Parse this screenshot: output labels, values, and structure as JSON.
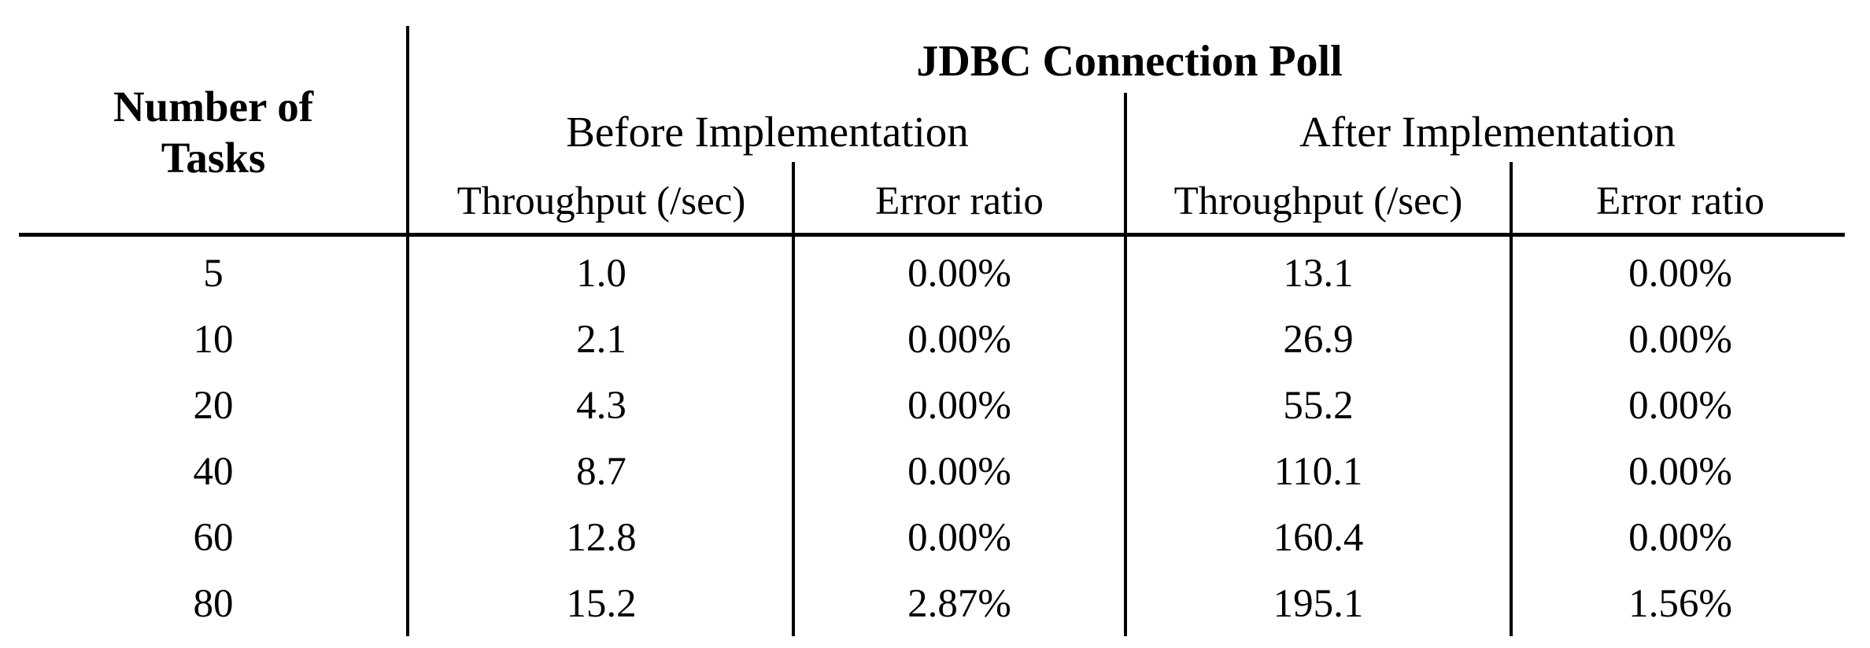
{
  "table": {
    "row_header_label": [
      "Number of",
      "Tasks"
    ],
    "group_title": "JDBC Connection Poll",
    "subgroups": [
      "Before Implementation",
      "After Implementation"
    ],
    "columns": [
      "Throughput (/sec)",
      "Error ratio",
      "Throughput (/sec)",
      "Error ratio"
    ],
    "rows": [
      {
        "tasks": "5",
        "before_throughput": "1.0",
        "before_error": "0.00%",
        "after_throughput": "13.1",
        "after_error": "0.00%"
      },
      {
        "tasks": "10",
        "before_throughput": "2.1",
        "before_error": "0.00%",
        "after_throughput": "26.9",
        "after_error": "0.00%"
      },
      {
        "tasks": "20",
        "before_throughput": "4.3",
        "before_error": "0.00%",
        "after_throughput": "55.2",
        "after_error": "0.00%"
      },
      {
        "tasks": "40",
        "before_throughput": "8.7",
        "before_error": "0.00%",
        "after_throughput": "110.1",
        "after_error": "0.00%"
      },
      {
        "tasks": "60",
        "before_throughput": "12.8",
        "before_error": "0.00%",
        "after_throughput": "160.4",
        "after_error": "0.00%"
      },
      {
        "tasks": "80",
        "before_throughput": "15.2",
        "before_error": "2.87%",
        "after_throughput": "195.1",
        "after_error": "1.56%"
      }
    ]
  }
}
